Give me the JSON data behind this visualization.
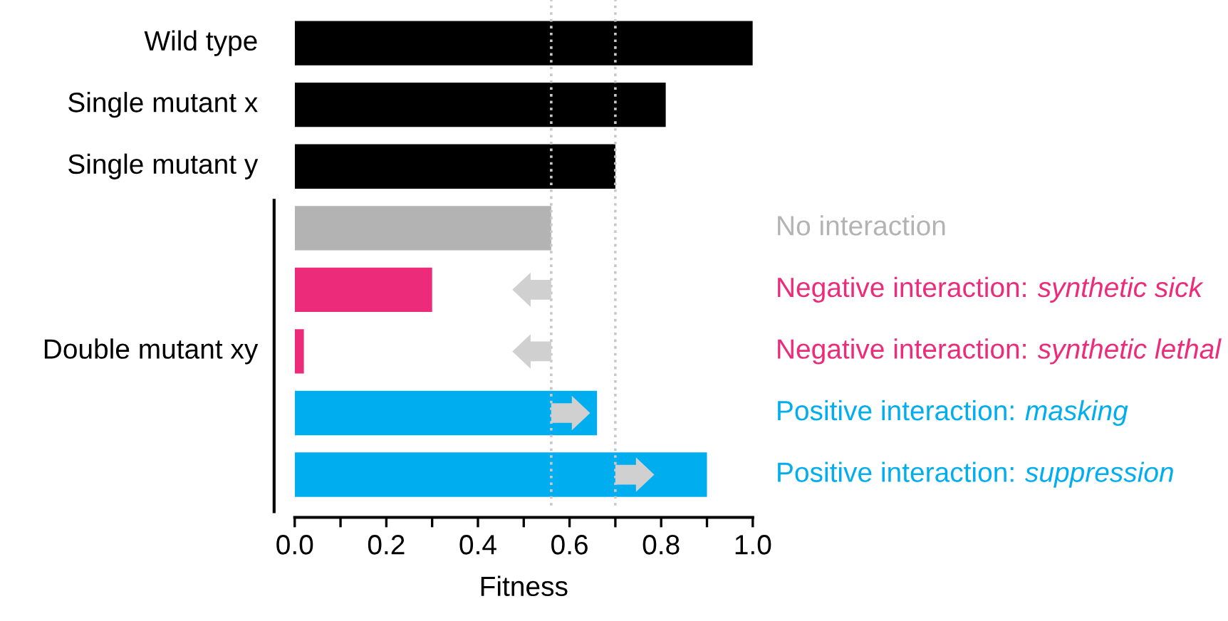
{
  "chart_data": {
    "type": "bar",
    "orientation": "horizontal",
    "xlabel": "Fitness",
    "categories": [
      "Wild type",
      "Single mutant x",
      "Single mutant y",
      null,
      null,
      null,
      null,
      null
    ],
    "values": [
      1.0,
      0.81,
      0.7,
      0.56,
      0.3,
      0.02,
      0.66,
      0.9
    ],
    "colors": [
      "#000000",
      "#000000",
      "#000000",
      "#b3b3b3",
      "#ec2c7a",
      "#ec2c7a",
      "#00aeef",
      "#00aeef"
    ],
    "annotations": [
      "Double mutant xy",
      "No interaction",
      "Negative interaction: synthetic sick",
      "Negative interaction: synthetic lethal",
      "Positive interaction: masking",
      "Positive interaction: suppression"
    ],
    "ref_lines": [
      {
        "axis": "x",
        "value": 0.56,
        "color": "#c8c8c8",
        "line_style": "dotted"
      },
      {
        "axis": "x",
        "value": 0.7,
        "color": "#c8c8c8",
        "line_style": "dotted"
      }
    ],
    "xlim": [
      0,
      1
    ],
    "xticks": [
      {
        "value": 0,
        "label": "0.0"
      },
      {
        "value": 0.1,
        "label": null
      },
      {
        "value": 0.2,
        "label": "0.2"
      },
      {
        "value": 0.3,
        "label": null
      },
      {
        "value": 0.4,
        "label": "0.4"
      },
      {
        "value": 0.5,
        "label": null
      },
      {
        "value": 0.6,
        "label": "0.6"
      },
      {
        "value": 0.7,
        "label": null
      },
      {
        "value": 0.8,
        "label": "0.8"
      },
      {
        "value": 0.9,
        "label": null
      },
      {
        "value": 1,
        "label": "1.0"
      }
    ],
    "grid": false
  }
}
